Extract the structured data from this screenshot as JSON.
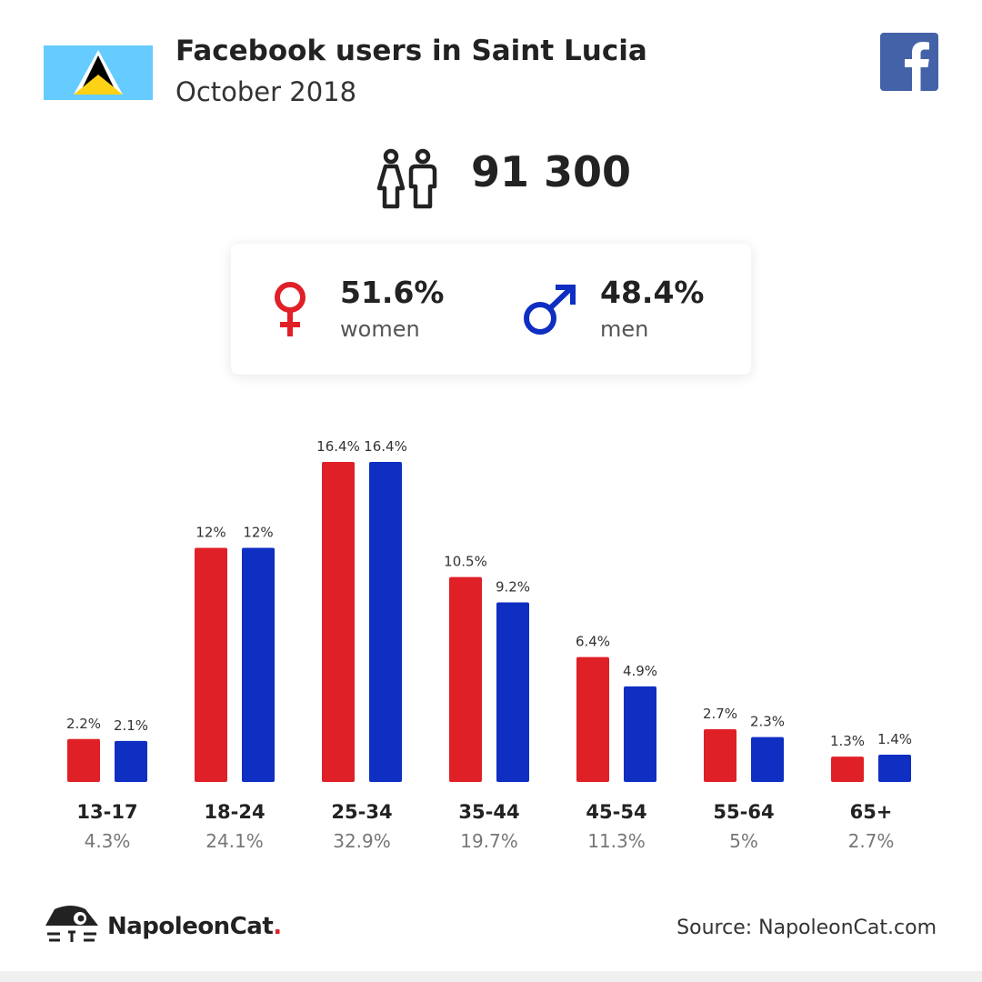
{
  "header": {
    "title": "Facebook users in Saint Lucia",
    "subtitle": "October 2018"
  },
  "icons": {
    "flag": "saint-lucia-flag-icon",
    "social": "facebook-logo-icon",
    "people": "people-icon",
    "female": "female-symbol-icon",
    "male": "male-symbol-icon",
    "brand": "napoleoncat-logo-icon"
  },
  "summary": {
    "total_users": "91 300"
  },
  "gender": {
    "women_pct": "51.6%",
    "women_label": "women",
    "men_pct": "48.4%",
    "men_label": "men"
  },
  "colors": {
    "women": "#e02027",
    "men": "#0f2ec2",
    "facebook": "#4462a8",
    "flag_blue": "#66ccff",
    "flag_yellow": "#fcd116"
  },
  "chart_data": {
    "type": "bar",
    "categories": [
      "13-17",
      "18-24",
      "25-34",
      "35-44",
      "45-54",
      "55-64",
      "65+"
    ],
    "category_totals": [
      "4.3%",
      "24.1%",
      "32.9%",
      "19.7%",
      "11.3%",
      "5%",
      "2.7%"
    ],
    "series": [
      {
        "name": "women",
        "values": [
          2.2,
          12,
          16.4,
          10.5,
          6.4,
          2.7,
          1.3
        ],
        "labels": [
          "2.2%",
          "12%",
          "16.4%",
          "10.5%",
          "6.4%",
          "2.7%",
          "1.3%"
        ]
      },
      {
        "name": "men",
        "values": [
          2.1,
          12,
          16.4,
          9.2,
          4.9,
          2.3,
          1.4
        ],
        "labels": [
          "2.1%",
          "12%",
          "16.4%",
          "9.2%",
          "4.9%",
          "2.3%",
          "1.4%"
        ]
      }
    ],
    "ylim": [
      0,
      16.4
    ],
    "grid": false,
    "legend": "none"
  },
  "footer": {
    "brand_name": "NapoleonCat",
    "brand_dot": ".",
    "source": "Source: NapoleonCat.com"
  }
}
